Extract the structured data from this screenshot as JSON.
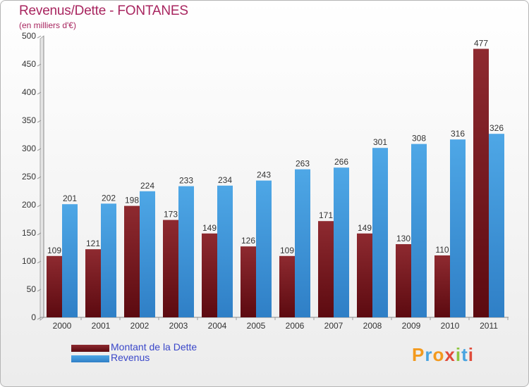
{
  "header": {
    "title": "Revenus/Dette - FONTANES",
    "subtitle": "(en milliers d'€)"
  },
  "logo_text": "Proxiti",
  "colors": {
    "debt": "#7a1a1f",
    "revenue": "#3f99de",
    "title": "#a8255f",
    "legend_text": "#3a47c9"
  },
  "chart_data": {
    "type": "bar",
    "title": "Revenus/Dette - FONTANES",
    "subtitle": "(en milliers d'€)",
    "categories": [
      "2000",
      "2001",
      "2002",
      "2003",
      "2004",
      "2005",
      "2006",
      "2007",
      "2008",
      "2009",
      "2010",
      "2011"
    ],
    "series": [
      {
        "name": "Montant de la Dette",
        "values": [
          109,
          121,
          198,
          173,
          149,
          126,
          109,
          171,
          149,
          130,
          110,
          477
        ]
      },
      {
        "name": "Revenus",
        "values": [
          201,
          202,
          224,
          233,
          234,
          243,
          263,
          266,
          301,
          308,
          316,
          326
        ]
      }
    ],
    "ylim": [
      0,
      500
    ],
    "yticks": [
      0,
      50,
      100,
      150,
      200,
      250,
      300,
      350,
      400,
      450,
      500
    ],
    "grid": false,
    "legend": "bottom-left"
  }
}
